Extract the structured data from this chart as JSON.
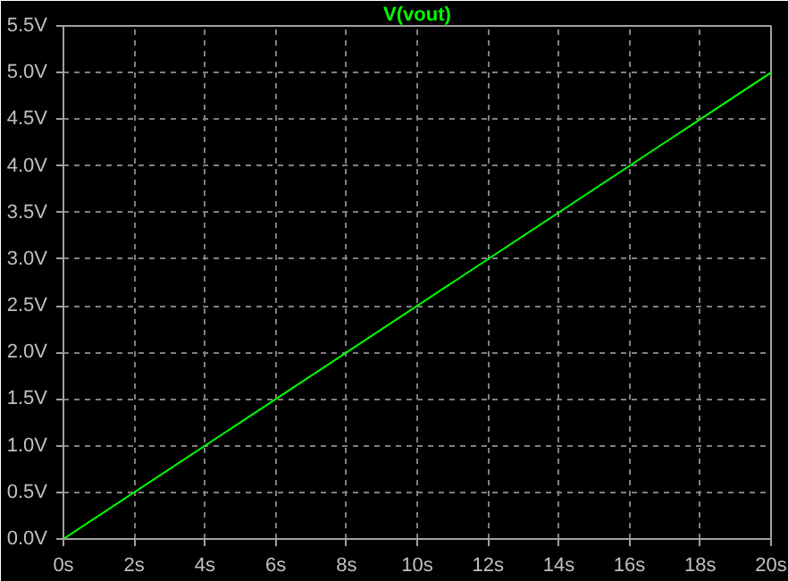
{
  "chart_data": {
    "type": "line",
    "title": "V(vout)",
    "x": [
      0,
      20
    ],
    "series": [
      {
        "color": "#00ff00",
        "values": [
          0,
          5
        ]
      }
    ],
    "xlim": [
      0,
      20
    ],
    "ylim": [
      0,
      5.5
    ],
    "xticks": [
      {
        "value": 0,
        "label": "0s"
      },
      {
        "value": 2,
        "label": "2s"
      },
      {
        "value": 4,
        "label": "4s"
      },
      {
        "value": 6,
        "label": "6s"
      },
      {
        "value": 8,
        "label": "8s"
      },
      {
        "value": 10,
        "label": "10s"
      },
      {
        "value": 12,
        "label": "12s"
      },
      {
        "value": 14,
        "label": "14s"
      },
      {
        "value": 16,
        "label": "16s"
      },
      {
        "value": 18,
        "label": "18s"
      },
      {
        "value": 20,
        "label": "20s"
      }
    ],
    "yticks": [
      {
        "value": 0,
        "label": "0.0V"
      },
      {
        "value": 0.5,
        "label": "0.5V"
      },
      {
        "value": 1,
        "label": "1.0V"
      },
      {
        "value": 1.5,
        "label": "1.5V"
      },
      {
        "value": 2,
        "label": "2.0V"
      },
      {
        "value": 2.5,
        "label": "2.5V"
      },
      {
        "value": 3,
        "label": "3.0V"
      },
      {
        "value": 3.5,
        "label": "3.5V"
      },
      {
        "value": 4,
        "label": "4.0V"
      },
      {
        "value": 4.5,
        "label": "4.5V"
      },
      {
        "value": 5,
        "label": "5.0V"
      },
      {
        "value": 5.5,
        "label": "5.5V"
      }
    ],
    "grid": true,
    "line_style": "solid",
    "marker": "none"
  }
}
